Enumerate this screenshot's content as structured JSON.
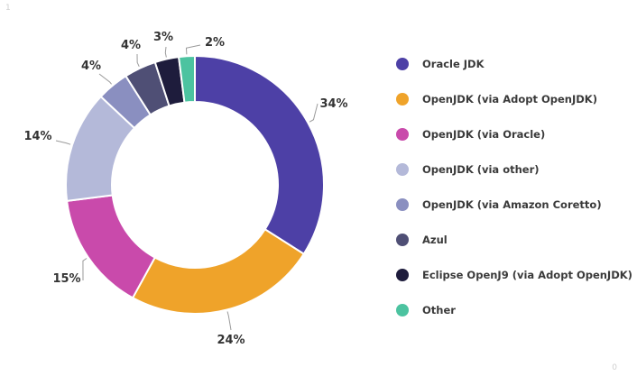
{
  "corner_marks": {
    "top_left": "1",
    "bottom_right": "0"
  },
  "chart_data": {
    "type": "pie",
    "donut": true,
    "title": "",
    "legend_position": "right",
    "unit": "%",
    "categories": [
      "Oracle JDK",
      "OpenJDK (via Adopt OpenJDK)",
      "OpenJDK (via Oracle)",
      "OpenJDK (via other)",
      "OpenJDK (via Amazon Coretto)",
      "Azul",
      "Eclipse OpenJ9 (via Adopt OpenJDK)",
      "Other"
    ],
    "values": [
      34,
      24,
      15,
      14,
      4,
      4,
      3,
      2
    ],
    "labels": [
      "34%",
      "24%",
      "15%",
      "14%",
      "4%",
      "4%",
      "3%",
      "2%"
    ],
    "colors": [
      "#4d40a6",
      "#efa32a",
      "#c94aab",
      "#b4b9d9",
      "#8a8fc0",
      "#4f4f75",
      "#1e1c3c",
      "#4cc3a0"
    ]
  }
}
